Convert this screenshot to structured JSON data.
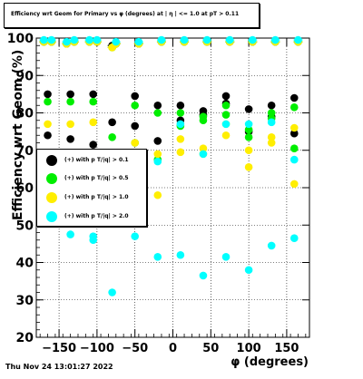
{
  "title": "Efficiency wrt Geom for Primary vs φ (degrees) at | η | <= 1.0 at pT > 0.11",
  "timestamp": "Thu Nov 24 13:01:27 2022",
  "chart_data": {
    "type": "scatter",
    "title": "Efficiency wrt Geom for Primary vs φ (degrees) at | η | <= 1.0 at pT > 0.11",
    "xlabel": "φ (degrees)",
    "ylabel": "Efficiency wrt Geom (%)",
    "xlim": [
      -180,
      180
    ],
    "ylim": [
      20,
      100
    ],
    "xticks": [
      -150,
      -100,
      -50,
      0,
      50,
      100,
      150
    ],
    "yticks": [
      20,
      30,
      40,
      50,
      60,
      70,
      80,
      90,
      100
    ],
    "grid": true,
    "legend_position": "left",
    "series": [
      {
        "name": "(+) with p T/|q| > 0.1",
        "color": "#000000",
        "points": [
          [
            -170,
            99
          ],
          [
            -165,
            85
          ],
          [
            -165,
            74
          ],
          [
            -160,
            99
          ],
          [
            -140,
            98.5
          ],
          [
            -135,
            85
          ],
          [
            -135,
            73
          ],
          [
            -130,
            99
          ],
          [
            -110,
            99
          ],
          [
            -105,
            85
          ],
          [
            -105,
            71.5
          ],
          [
            -100,
            99
          ],
          [
            -80,
            77.5
          ],
          [
            -80,
            98
          ],
          [
            -75,
            98.5
          ],
          [
            -50,
            84.5
          ],
          [
            -50,
            76.5
          ],
          [
            -45,
            98.5
          ],
          [
            -20,
            82
          ],
          [
            -20,
            72.5
          ],
          [
            -15,
            99
          ],
          [
            10,
            82
          ],
          [
            10,
            78
          ],
          [
            15,
            99
          ],
          [
            40,
            80.5
          ],
          [
            40,
            79.5
          ],
          [
            45,
            99
          ],
          [
            70,
            84.5
          ],
          [
            70,
            82.5
          ],
          [
            75,
            99
          ],
          [
            100,
            81
          ],
          [
            100,
            75
          ],
          [
            105,
            99
          ],
          [
            130,
            82
          ],
          [
            130,
            79
          ],
          [
            135,
            99
          ],
          [
            160,
            84
          ],
          [
            160,
            74.5
          ],
          [
            165,
            99
          ]
        ]
      },
      {
        "name": "(+) with p T/|q| > 0.5",
        "color": "#00ee00",
        "points": [
          [
            -170,
            99
          ],
          [
            -165,
            83
          ],
          [
            -165,
            68.5
          ],
          [
            -160,
            99
          ],
          [
            -140,
            98.5
          ],
          [
            -135,
            83
          ],
          [
            -135,
            68.5
          ],
          [
            -130,
            99
          ],
          [
            -110,
            99
          ],
          [
            -105,
            83
          ],
          [
            -105,
            66
          ],
          [
            -100,
            99
          ],
          [
            -80,
            73.5
          ],
          [
            -80,
            97.5
          ],
          [
            -75,
            98.5
          ],
          [
            -50,
            82
          ],
          [
            -50,
            72
          ],
          [
            -45,
            98.5
          ],
          [
            -20,
            80
          ],
          [
            -20,
            67.5
          ],
          [
            -15,
            99
          ],
          [
            10,
            80
          ],
          [
            10,
            76.5
          ],
          [
            15,
            99
          ],
          [
            40,
            79
          ],
          [
            40,
            78
          ],
          [
            45,
            99
          ],
          [
            70,
            82
          ],
          [
            70,
            79.5
          ],
          [
            75,
            99
          ],
          [
            100,
            75.5
          ],
          [
            100,
            73.5
          ],
          [
            105,
            99
          ],
          [
            130,
            80
          ],
          [
            130,
            78.5
          ],
          [
            135,
            99
          ],
          [
            160,
            81.5
          ],
          [
            160,
            70.5
          ],
          [
            165,
            99
          ]
        ]
      },
      {
        "name": "(+) with p T/|q| > 1.0",
        "color": "#ffee00",
        "points": [
          [
            -170,
            99
          ],
          [
            -165,
            77
          ],
          [
            -165,
            63.5
          ],
          [
            -160,
            99
          ],
          [
            -140,
            98.5
          ],
          [
            -135,
            77
          ],
          [
            -135,
            63.5
          ],
          [
            -130,
            99
          ],
          [
            -110,
            99
          ],
          [
            -105,
            77.5
          ],
          [
            -105,
            63.5
          ],
          [
            -100,
            99
          ],
          [
            -80,
            65
          ],
          [
            -80,
            97.5
          ],
          [
            -75,
            98.5
          ],
          [
            -50,
            72
          ],
          [
            -50,
            63.5
          ],
          [
            -45,
            98.5
          ],
          [
            -20,
            69
          ],
          [
            -20,
            58
          ],
          [
            -15,
            99
          ],
          [
            10,
            73
          ],
          [
            10,
            69.5
          ],
          [
            15,
            99
          ],
          [
            40,
            70.5
          ],
          [
            40,
            69
          ],
          [
            45,
            99
          ],
          [
            70,
            77
          ],
          [
            70,
            74
          ],
          [
            75,
            99
          ],
          [
            100,
            70
          ],
          [
            100,
            65.5
          ],
          [
            105,
            99
          ],
          [
            130,
            73.5
          ],
          [
            130,
            72
          ],
          [
            135,
            99
          ],
          [
            160,
            76
          ],
          [
            160,
            61
          ],
          [
            165,
            99
          ]
        ]
      },
      {
        "name": "(+) with p T/|q| > 2.0",
        "color": "#00ffff",
        "points": [
          [
            -170,
            99.5
          ],
          [
            -165,
            63
          ],
          [
            -165,
            60
          ],
          [
            -160,
            99.5
          ],
          [
            -140,
            99
          ],
          [
            -135,
            47.5
          ],
          [
            -135,
            60.5
          ],
          [
            -130,
            99.5
          ],
          [
            -110,
            99.5
          ],
          [
            -105,
            46
          ],
          [
            -105,
            47
          ],
          [
            -100,
            99.5
          ],
          [
            -80,
            62
          ],
          [
            -80,
            32
          ],
          [
            -75,
            99
          ],
          [
            -50,
            68.5
          ],
          [
            -50,
            47
          ],
          [
            -45,
            99
          ],
          [
            -20,
            67
          ],
          [
            -20,
            41.5
          ],
          [
            -15,
            99.5
          ],
          [
            10,
            77
          ],
          [
            10,
            42
          ],
          [
            15,
            99.5
          ],
          [
            40,
            36.5
          ],
          [
            40,
            69
          ],
          [
            45,
            99.5
          ],
          [
            70,
            41.5
          ],
          [
            70,
            77
          ],
          [
            75,
            99.5
          ],
          [
            100,
            38
          ],
          [
            100,
            77
          ],
          [
            105,
            99.5
          ],
          [
            130,
            44.5
          ],
          [
            130,
            77.5
          ],
          [
            135,
            99.5
          ],
          [
            160,
            46.5
          ],
          [
            160,
            67.5
          ],
          [
            165,
            99.5
          ]
        ]
      }
    ]
  }
}
